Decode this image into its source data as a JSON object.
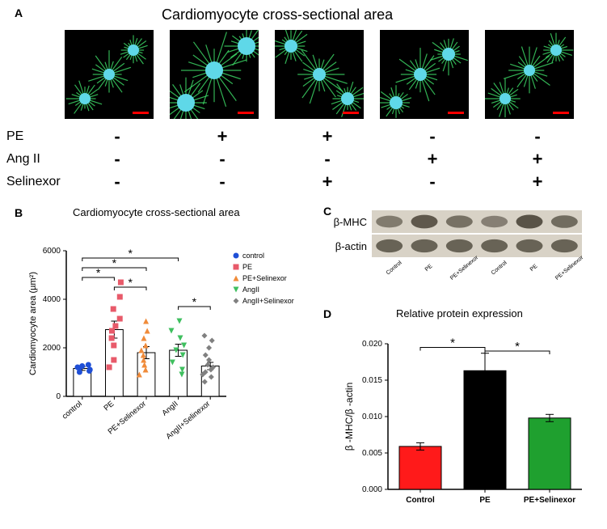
{
  "panelA": {
    "label": "A",
    "title": "Cardiomyocyte cross-sectional  area",
    "conditions": {
      "rows": [
        "PE",
        "Ang II",
        "Selinexor"
      ],
      "matrix": [
        [
          "-",
          "+",
          "+",
          "-",
          "-"
        ],
        [
          "-",
          "-",
          "-",
          "+",
          "+"
        ],
        [
          "-",
          "-",
          "+",
          "-",
          "+"
        ]
      ]
    },
    "cell_color": "#3fe06a",
    "nucleus_color": "#5fd8e8",
    "scalebar_color": "#ff0000"
  },
  "panelB": {
    "label": "B",
    "title": "Cardiomyocyte cross-sectional area",
    "type": "scatter_bar",
    "ylabel": "Cardiomyocyte area (µm²)",
    "ylim": [
      0,
      6000
    ],
    "ytick_step": 2000,
    "categories": [
      "control",
      "PE",
      "PE+Selinexor",
      "AngII",
      "AngII+Selinexor"
    ],
    "bar_heights": [
      1150,
      2750,
      1800,
      1900,
      1250
    ],
    "bar_sem": [
      80,
      350,
      250,
      250,
      150
    ],
    "bar_fill": "#ffffff",
    "bar_border": "#000000",
    "points": {
      "control": [
        1000,
        1050,
        1100,
        1150,
        1200,
        1250,
        1300
      ],
      "PE": [
        1200,
        1500,
        2100,
        2400,
        2700,
        2900,
        3200,
        3600,
        4100,
        4700
      ],
      "PE+Selinexor": [
        900,
        1100,
        1300,
        1500,
        1700,
        1900,
        2100,
        2400,
        2700,
        3100
      ],
      "AngII": [
        900,
        1100,
        1400,
        1700,
        1900,
        2100,
        2400,
        2700,
        3100
      ],
      "AngII+Selinexor": [
        600,
        800,
        900,
        1000,
        1100,
        1200,
        1300,
        1500,
        1700,
        2000,
        2300,
        2500
      ]
    },
    "point_colors": {
      "control": "#1f4fd6",
      "PE": "#e85a6a",
      "PE+Selinexor": "#f08b3a",
      "AngII": "#3fbf5f",
      "AngII+Selinexor": "#808080"
    },
    "point_markers": {
      "control": "circle",
      "PE": "square",
      "PE+Selinexor": "triangle",
      "AngII": "triangle-down",
      "AngII+Selinexor": "diamond"
    },
    "legend": [
      "control",
      "PE",
      "PE+Selinexor",
      "AngII",
      "AngII+Selinexor"
    ],
    "sig_brackets": [
      {
        "from": 0,
        "to": 1,
        "y": 4900,
        "label": "*"
      },
      {
        "from": 0,
        "to": 2,
        "y": 5300,
        "label": "*"
      },
      {
        "from": 1,
        "to": 2,
        "y": 4500,
        "label": "*"
      },
      {
        "from": 0,
        "to": 3,
        "y": 5700,
        "label": "*"
      },
      {
        "from": 3,
        "to": 4,
        "y": 3700,
        "label": "*"
      }
    ],
    "label_fontsize": 10
  },
  "panelC": {
    "label": "C",
    "rows": [
      "β-MHC",
      "β-actin"
    ],
    "lanes": [
      "Control",
      "PE",
      "PE+Selinexor",
      "Control",
      "PE",
      "PE+Selinexor"
    ],
    "band_intensity": {
      "β-MHC": [
        0.45,
        0.8,
        0.55,
        0.4,
        0.85,
        0.6
      ],
      "β-actin": [
        0.7,
        0.7,
        0.7,
        0.7,
        0.7,
        0.7
      ]
    },
    "band_color": "#4a4438",
    "bg_color": "#d8d2c6"
  },
  "panelD": {
    "label": "D",
    "title": "Relative protein expression",
    "type": "bar",
    "ylabel": "β -MHC/β -actin",
    "categories": [
      "Control",
      "PE",
      "PE+Selinexor"
    ],
    "values": [
      0.0059,
      0.0163,
      0.0098
    ],
    "sem": [
      0.0005,
      0.0024,
      0.0005
    ],
    "bar_colors": [
      "#ff1a1a",
      "#000000",
      "#1fa02f"
    ],
    "ylim": [
      0,
      0.02
    ],
    "ytick_step": 0.005,
    "sig_brackets": [
      {
        "from": 0,
        "to": 1,
        "y": 0.0195,
        "label": "*"
      },
      {
        "from": 1,
        "to": 2,
        "y": 0.019,
        "label": "*"
      }
    ],
    "label_fontsize": 11
  }
}
